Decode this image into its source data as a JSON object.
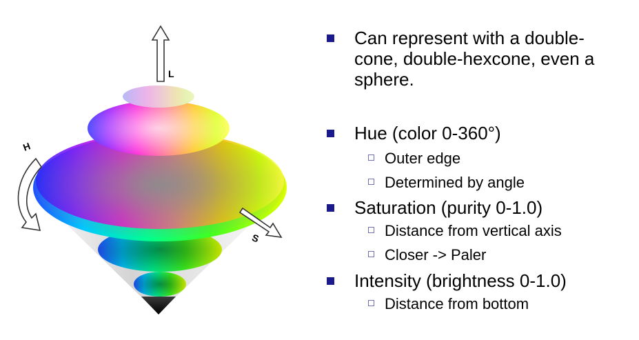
{
  "diagram": {
    "axis_labels": {
      "lightness": "L",
      "hue": "H",
      "saturation": "S"
    },
    "colors": {
      "red": "#ff0000",
      "magenta": "#ff00ff",
      "blue": "#0000ff",
      "cyan": "#00ffff",
      "green": "#00ff00",
      "yellow": "#ffff00",
      "shadow": "#9a9a9a"
    }
  },
  "bullets": [
    {
      "lines": [
        "Can represent with a double-",
        "cone, double-hexcone, even a",
        "sphere."
      ]
    },
    {
      "lines": [
        "Hue (color 0-360°)"
      ],
      "sub": [
        "Outer edge",
        "Determined by angle"
      ]
    },
    {
      "lines": [
        "Saturation (purity 0-1.0)"
      ],
      "sub": [
        "Distance from vertical axis",
        "Closer -> Paler"
      ]
    },
    {
      "lines": [
        "Intensity (brightness 0-1.0)"
      ],
      "sub": [
        "Distance from bottom"
      ]
    }
  ],
  "bullet_colors": {
    "filled": "#1a1a8c",
    "outline": "#6f6fb0"
  }
}
